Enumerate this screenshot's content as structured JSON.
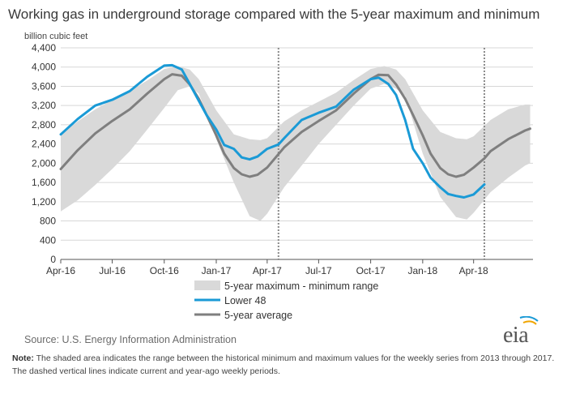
{
  "title": "Working gas in underground  storage compared with the 5-year maximum and minimum",
  "source": "Source:  U.S. Energy Information Administration",
  "note_label": "Note:",
  "note_text": " The shaded area indicates the range between the historical minimum and maximum values for the weekly series from 2013 through 2017. The dashed vertical lines indicate current and year-ago weekly periods.",
  "logo_text": "eia",
  "colors": {
    "band": "#d9d9d9",
    "lower48": "#1a9ad6",
    "avg": "#7f7f7f",
    "grid": "#d7d7d7",
    "dashed": "#8a8a8a"
  },
  "chart_data": {
    "type": "line",
    "title": "Working gas in underground  storage compared with the 5-year maximum and minimum",
    "ylabel": "billion cubic feet",
    "xlabel": "",
    "ylim": [
      0,
      4400
    ],
    "yticks": [
      0,
      400,
      800,
      1200,
      1600,
      2000,
      2400,
      2800,
      3200,
      3600,
      4000,
      4400
    ],
    "ytick_labels": [
      "0",
      "400",
      "800",
      "1,200",
      "1,600",
      "2,000",
      "2,400",
      "2,800",
      "3,200",
      "3,600",
      "4,000",
      "4,400"
    ],
    "xlim": [
      "2016-04-01",
      "2018-07-15"
    ],
    "xticks": [
      "2016-04-01",
      "2016-07-01",
      "2016-10-01",
      "2017-01-01",
      "2017-04-01",
      "2017-07-01",
      "2017-10-01",
      "2018-01-01",
      "2018-04-01"
    ],
    "xtick_labels": [
      "Apr-16",
      "Jul-16",
      "Oct-16",
      "Jan-17",
      "Apr-17",
      "Jul-17",
      "Oct-17",
      "Jan-18",
      "Apr-18"
    ],
    "grid": true,
    "vertical_dashed_lines": [
      "2017-04-21",
      "2018-04-20"
    ],
    "legend": {
      "placement": "bottom-center",
      "entries": [
        "5-year maximum - minimum range",
        "Lower 48",
        "5-year average"
      ]
    },
    "series": [
      {
        "name": "5-year maximum - minimum range",
        "kind": "band",
        "x": [
          "2016-04-01",
          "2016-05-01",
          "2016-06-01",
          "2016-07-01",
          "2016-08-01",
          "2016-09-01",
          "2016-10-01",
          "2016-10-25",
          "2016-11-15",
          "2016-12-01",
          "2017-01-01",
          "2017-02-01",
          "2017-03-01",
          "2017-03-20",
          "2017-04-01",
          "2017-05-01",
          "2017-06-01",
          "2017-07-01",
          "2017-08-01",
          "2017-09-01",
          "2017-10-01",
          "2017-10-25",
          "2017-11-15",
          "2017-12-01",
          "2018-01-01",
          "2018-02-01",
          "2018-03-01",
          "2018-03-20",
          "2018-04-01",
          "2018-05-01",
          "2018-06-01",
          "2018-07-01",
          "2018-07-10"
        ],
        "max": [
          2600,
          2870,
          3120,
          3320,
          3500,
          3720,
          3960,
          4020,
          3950,
          3750,
          3100,
          2600,
          2500,
          2480,
          2520,
          2870,
          3100,
          3280,
          3470,
          3730,
          3960,
          4020,
          3950,
          3750,
          3100,
          2650,
          2520,
          2500,
          2560,
          2900,
          3120,
          3220,
          3220
        ],
        "min": [
          1000,
          1230,
          1550,
          1880,
          2250,
          2700,
          3150,
          3520,
          3600,
          3450,
          2500,
          1600,
          900,
          800,
          950,
          1500,
          1950,
          2400,
          2800,
          3200,
          3550,
          3650,
          3550,
          3400,
          2200,
          1300,
          880,
          830,
          970,
          1400,
          1700,
          1950,
          2000
        ]
      },
      {
        "name": "Lower 48",
        "kind": "line",
        "x": [
          "2016-04-01",
          "2016-05-01",
          "2016-06-01",
          "2016-07-01",
          "2016-08-01",
          "2016-09-01",
          "2016-10-01",
          "2016-10-15",
          "2016-11-01",
          "2016-11-15",
          "2016-12-01",
          "2016-12-15",
          "2017-01-01",
          "2017-01-15",
          "2017-02-01",
          "2017-02-15",
          "2017-03-01",
          "2017-03-15",
          "2017-04-01",
          "2017-04-21",
          "2017-05-01",
          "2017-06-01",
          "2017-07-01",
          "2017-08-01",
          "2017-09-01",
          "2017-10-01",
          "2017-10-15",
          "2017-11-01",
          "2017-11-15",
          "2017-12-01",
          "2017-12-15",
          "2018-01-01",
          "2018-01-15",
          "2018-02-01",
          "2018-02-15",
          "2018-03-01",
          "2018-03-15",
          "2018-04-01",
          "2018-04-20"
        ],
        "values": [
          2600,
          2920,
          3200,
          3320,
          3500,
          3800,
          4030,
          4040,
          3950,
          3650,
          3300,
          3000,
          2700,
          2380,
          2300,
          2120,
          2080,
          2140,
          2300,
          2390,
          2520,
          2900,
          3050,
          3180,
          3530,
          3750,
          3780,
          3650,
          3420,
          2900,
          2300,
          2000,
          1700,
          1500,
          1360,
          1320,
          1290,
          1350,
          1560
        ]
      },
      {
        "name": "5-year average",
        "kind": "line",
        "x": [
          "2016-04-01",
          "2016-05-01",
          "2016-06-01",
          "2016-07-01",
          "2016-08-01",
          "2016-09-01",
          "2016-10-01",
          "2016-10-15",
          "2016-11-01",
          "2016-11-15",
          "2016-12-01",
          "2016-12-15",
          "2017-01-01",
          "2017-01-15",
          "2017-02-01",
          "2017-02-15",
          "2017-03-01",
          "2017-03-15",
          "2017-04-01",
          "2017-05-01",
          "2017-06-01",
          "2017-07-01",
          "2017-08-01",
          "2017-09-01",
          "2017-10-01",
          "2017-10-15",
          "2017-11-01",
          "2017-11-15",
          "2017-12-01",
          "2017-12-15",
          "2018-01-01",
          "2018-01-15",
          "2018-02-01",
          "2018-02-15",
          "2018-03-01",
          "2018-03-15",
          "2018-04-01",
          "2018-04-20",
          "2018-05-01",
          "2018-06-01",
          "2018-07-01",
          "2018-07-10"
        ],
        "values": [
          1880,
          2270,
          2620,
          2880,
          3120,
          3450,
          3750,
          3850,
          3820,
          3640,
          3340,
          3000,
          2580,
          2200,
          1900,
          1770,
          1720,
          1760,
          1910,
          2330,
          2650,
          2880,
          3100,
          3450,
          3750,
          3840,
          3830,
          3640,
          3340,
          3000,
          2580,
          2200,
          1900,
          1770,
          1720,
          1760,
          1910,
          2100,
          2250,
          2500,
          2680,
          2720
        ]
      }
    ]
  }
}
